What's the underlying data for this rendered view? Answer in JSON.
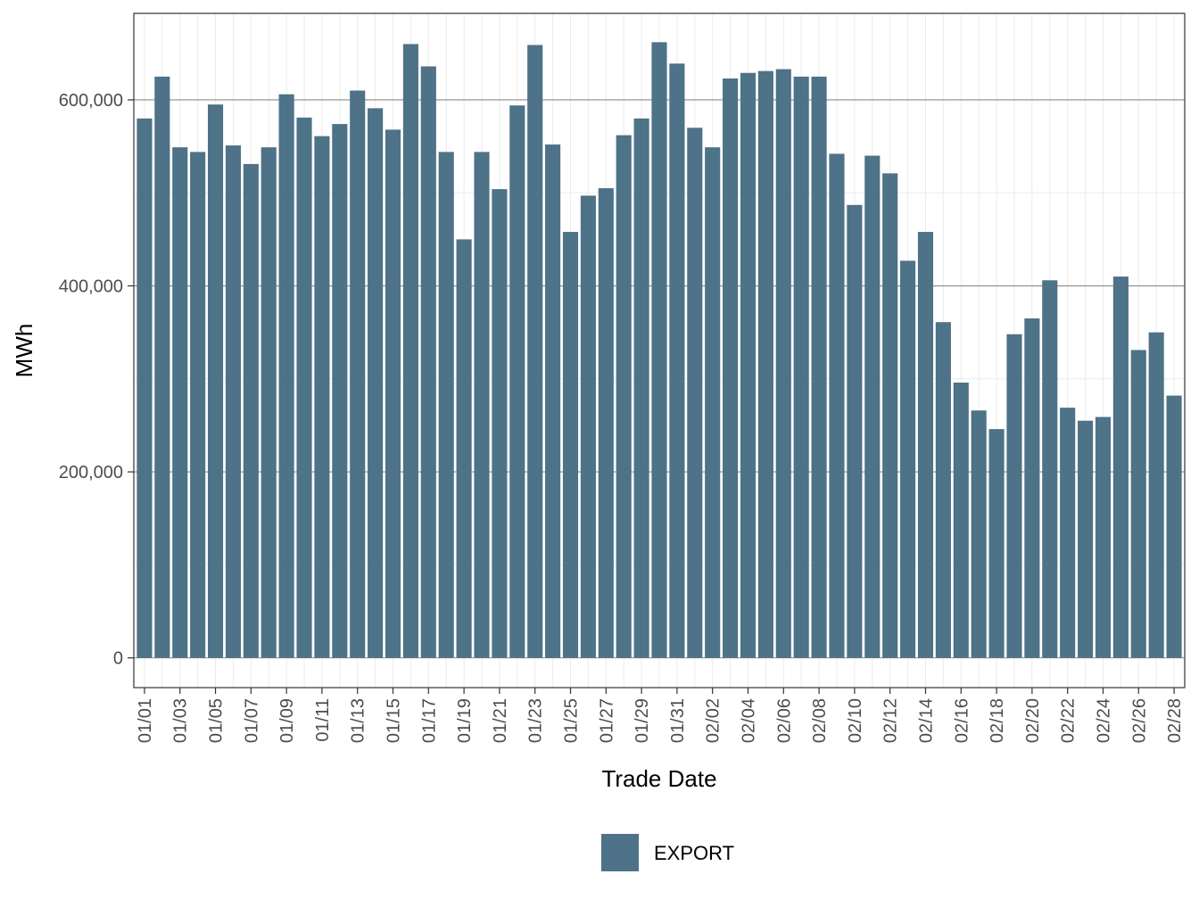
{
  "chart_data": {
    "type": "bar",
    "title": "",
    "xlabel": "Trade Date",
    "ylabel": "MWh",
    "ylim": [
      -32000,
      693000
    ],
    "yticks": [
      0,
      200000,
      400000,
      600000
    ],
    "ytick_labels": [
      "0",
      "200,000",
      "400,000",
      "600,000"
    ],
    "y_minor_gridlines": [
      100000,
      300000,
      500000
    ],
    "grid": true,
    "legend_position": "bottom",
    "categories": [
      "01/01",
      "01/02",
      "01/03",
      "01/04",
      "01/05",
      "01/06",
      "01/07",
      "01/08",
      "01/09",
      "01/10",
      "01/11",
      "01/12",
      "01/13",
      "01/14",
      "01/15",
      "01/16",
      "01/17",
      "01/18",
      "01/19",
      "01/20",
      "01/21",
      "01/22",
      "01/23",
      "01/24",
      "01/25",
      "01/26",
      "01/27",
      "01/28",
      "01/29",
      "01/30",
      "01/31",
      "02/01",
      "02/02",
      "02/03",
      "02/04",
      "02/05",
      "02/06",
      "02/07",
      "02/08",
      "02/09",
      "02/10",
      "02/11",
      "02/12",
      "02/13",
      "02/14",
      "02/15",
      "02/16",
      "02/17",
      "02/18",
      "02/19",
      "02/20",
      "02/21",
      "02/22",
      "02/23",
      "02/24",
      "02/25",
      "02/26",
      "02/27",
      "02/28"
    ],
    "xtick_labels": [
      "01/01",
      "01/03",
      "01/05",
      "01/07",
      "01/09",
      "01/11",
      "01/13",
      "01/15",
      "01/17",
      "01/19",
      "01/21",
      "01/23",
      "01/25",
      "01/27",
      "01/29",
      "01/31",
      "02/02",
      "02/04",
      "02/06",
      "02/08",
      "02/10",
      "02/12",
      "02/14",
      "02/16",
      "02/18",
      "02/20",
      "02/22",
      "02/24",
      "02/26",
      "02/28"
    ],
    "series": [
      {
        "name": "EXPORT",
        "color": "#4e7287",
        "values": [
          580000,
          625000,
          549000,
          544000,
          595000,
          551000,
          531000,
          549000,
          606000,
          581000,
          561000,
          574000,
          610000,
          591000,
          568000,
          660000,
          636000,
          544000,
          450000,
          544000,
          504000,
          594000,
          659000,
          552000,
          458000,
          497000,
          505000,
          562000,
          580000,
          662000,
          639000,
          570000,
          549000,
          623000,
          629000,
          631000,
          633000,
          625000,
          625000,
          542000,
          487000,
          540000,
          521000,
          427000,
          458000,
          361000,
          296000,
          266000,
          246000,
          348000,
          365000,
          406000,
          269000,
          255000,
          259000,
          410000,
          331000,
          350000,
          282000
        ]
      }
    ]
  }
}
